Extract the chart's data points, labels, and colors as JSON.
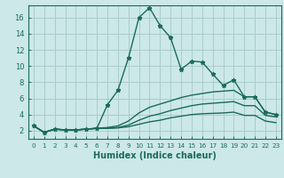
{
  "xlabel": "Humidex (Indice chaleur)",
  "ylabel": "",
  "bg_color": "#cce8e8",
  "line_color": "#1a6b5a",
  "grid_color": "#aacccc",
  "xlim": [
    -0.5,
    23.5
  ],
  "ylim": [
    1.0,
    17.5
  ],
  "yticks": [
    2,
    4,
    6,
    8,
    10,
    12,
    14,
    16
  ],
  "xticks": [
    0,
    1,
    2,
    3,
    4,
    5,
    6,
    7,
    8,
    9,
    10,
    11,
    12,
    13,
    14,
    15,
    16,
    17,
    18,
    19,
    20,
    21,
    22,
    23
  ],
  "series": [
    {
      "x": [
        0,
        1,
        2,
        3,
        4,
        5,
        6,
        7,
        8,
        9,
        10,
        11,
        12,
        13,
        14,
        15,
        16,
        17,
        18,
        19,
        20,
        21,
        22,
        23
      ],
      "y": [
        2.6,
        1.8,
        2.2,
        2.1,
        2.1,
        2.2,
        2.3,
        5.2,
        7.0,
        11.0,
        16.0,
        17.2,
        15.0,
        13.5,
        9.6,
        10.6,
        10.5,
        9.0,
        7.6,
        8.3,
        6.2,
        6.2,
        4.3,
        4.0
      ],
      "marker": "*",
      "linestyle": "-",
      "linewidth": 1.0
    },
    {
      "x": [
        0,
        1,
        2,
        3,
        4,
        5,
        6,
        7,
        8,
        9,
        10,
        11,
        12,
        13,
        14,
        15,
        16,
        17,
        18,
        19,
        20,
        21,
        22,
        23
      ],
      "y": [
        2.6,
        1.8,
        2.2,
        2.1,
        2.1,
        2.2,
        2.3,
        2.4,
        2.6,
        3.2,
        4.2,
        4.9,
        5.3,
        5.7,
        6.1,
        6.4,
        6.6,
        6.8,
        6.9,
        7.0,
        6.2,
        6.2,
        4.3,
        4.0
      ],
      "marker": "",
      "linestyle": "-",
      "linewidth": 1.0
    },
    {
      "x": [
        0,
        1,
        2,
        3,
        4,
        5,
        6,
        7,
        8,
        9,
        10,
        11,
        12,
        13,
        14,
        15,
        16,
        17,
        18,
        19,
        20,
        21,
        22,
        23
      ],
      "y": [
        2.6,
        1.8,
        2.2,
        2.1,
        2.1,
        2.2,
        2.3,
        2.3,
        2.4,
        2.7,
        3.3,
        3.8,
        4.1,
        4.5,
        4.8,
        5.1,
        5.3,
        5.4,
        5.5,
        5.6,
        5.1,
        5.1,
        3.9,
        3.7
      ],
      "marker": "",
      "linestyle": "-",
      "linewidth": 1.0
    },
    {
      "x": [
        0,
        1,
        2,
        3,
        4,
        5,
        6,
        7,
        8,
        9,
        10,
        11,
        12,
        13,
        14,
        15,
        16,
        17,
        18,
        19,
        20,
        21,
        22,
        23
      ],
      "y": [
        2.6,
        1.8,
        2.2,
        2.1,
        2.1,
        2.2,
        2.3,
        2.3,
        2.35,
        2.5,
        2.8,
        3.1,
        3.3,
        3.6,
        3.8,
        4.0,
        4.1,
        4.15,
        4.2,
        4.3,
        3.9,
        3.9,
        3.2,
        3.0
      ],
      "marker": "",
      "linestyle": "-",
      "linewidth": 1.0
    }
  ]
}
